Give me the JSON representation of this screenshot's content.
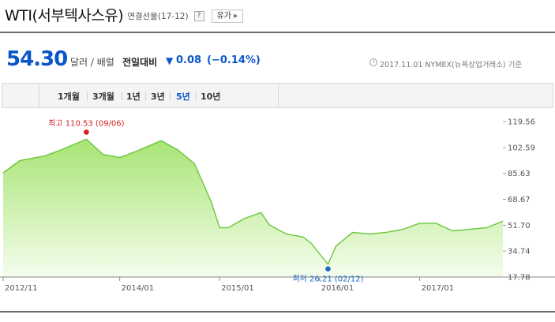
{
  "header": {
    "title": "WTI(서부텍사스유)",
    "subtitle": "연결선물(17-12)",
    "help_label": "?",
    "type_button_label": "유가",
    "type_arrow_icon": "chevron-right-icon"
  },
  "price": {
    "value": "54.30",
    "unit": "달러 / 배럴",
    "change_label": "전일대비",
    "change_direction_icon": "triangle-down-icon",
    "change_arrow": "▼",
    "change_value": "0.08",
    "change_pct": "(−0.14%)",
    "date_info": "2017.11.01  NYMEX(뉴욕상업거래소) 기준"
  },
  "tabs": [
    {
      "label": "1개월",
      "active": false
    },
    {
      "label": "3개월",
      "active": false
    },
    {
      "label": "1년",
      "active": false
    },
    {
      "label": "3년",
      "active": false
    },
    {
      "label": "5년",
      "active": true
    },
    {
      "label": "10년",
      "active": false
    }
  ],
  "colors": {
    "accent": "#0a56c9",
    "line": "#6cc63a",
    "fill_top": "#a8e475",
    "fill_bottom": "#f4fdec",
    "high_marker": "#d42020",
    "low_marker": "#1a6ac8"
  },
  "chart_data": {
    "type": "area",
    "x": [
      "2012/11",
      "2013/01",
      "2013/04",
      "2013/06",
      "2013/09",
      "2013/11",
      "2014/01",
      "2014/03",
      "2014/06",
      "2014/08",
      "2014/10",
      "2014/12",
      "2015/01",
      "2015/02",
      "2015/04",
      "2015/06",
      "2015/07",
      "2015/09",
      "2015/11",
      "2015/12",
      "2016/01",
      "2016/02",
      "2016/03",
      "2016/05",
      "2016/07",
      "2016/09",
      "2016/11",
      "2017/01",
      "2017/03",
      "2017/05",
      "2017/07",
      "2017/09",
      "2017/11"
    ],
    "y": [
      86,
      94,
      97,
      101,
      108,
      98,
      96,
      100,
      107,
      101,
      92,
      67,
      50,
      50,
      56,
      60,
      52,
      46,
      44,
      40,
      33,
      26.21,
      38,
      47,
      46,
      47,
      49,
      53,
      53,
      48,
      49,
      50,
      54.3
    ],
    "yticks": [
      "119.56",
      "102.59",
      "85.63",
      "68.67",
      "51.70",
      "34.74",
      "17.78"
    ],
    "xticks": [
      "2012/11",
      "2014/01",
      "2015/01",
      "2016/01",
      "2017/01"
    ],
    "ylim": [
      17.78,
      119.56
    ],
    "high": {
      "label": "최고 110.53 (09/06)",
      "x": "2013/09",
      "y": 110.53
    },
    "low": {
      "label": "최저 26.21 (02/12)",
      "x": "2016/02",
      "y": 26.21
    },
    "grid": false
  }
}
